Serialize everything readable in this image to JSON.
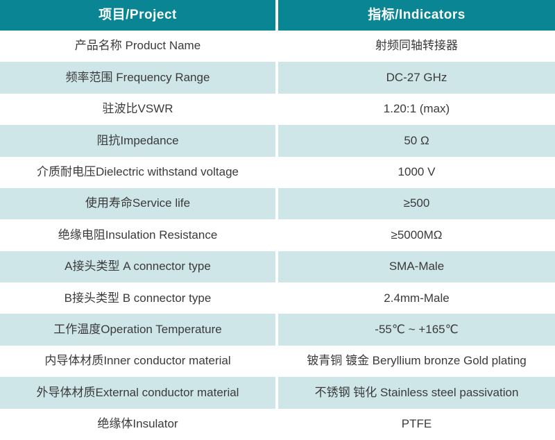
{
  "colors": {
    "header_bg": "#0A8593",
    "header_text": "#FFFFFF",
    "stripe_bg": "#CFE6E9",
    "row_bg": "#FFFFFF",
    "body_text": "#3A3A3A",
    "divider": "#FFFFFF"
  },
  "table": {
    "headers": [
      {
        "label": "项目/Project"
      },
      {
        "label": "指标/Indicators"
      }
    ],
    "rows": [
      {
        "project": "产品名称 Product Name",
        "indicator": "射频同轴转接器"
      },
      {
        "project": "频率范围 Frequency Range",
        "indicator": "DC-27 GHz"
      },
      {
        "project": "驻波比VSWR",
        "indicator": "1.20:1 (max)"
      },
      {
        "project": "阻抗Impedance",
        "indicator": "50 Ω"
      },
      {
        "project": "介质耐电压Dielectric withstand voltage",
        "indicator": "1000 V"
      },
      {
        "project": "使用寿命Service life",
        "indicator": "≥500"
      },
      {
        "project": "绝缘电阻Insulation Resistance",
        "indicator": "≥5000MΩ"
      },
      {
        "project": "A接头类型 A connector type",
        "indicator": "SMA-Male"
      },
      {
        "project": "B接头类型 B connector type",
        "indicator": "2.4mm-Male"
      },
      {
        "project": "工作温度Operation Temperature",
        "indicator": "-55℃ ~ +165℃"
      },
      {
        "project": "内导体材质Inner conductor material",
        "indicator": "铍青铜 镀金 Beryllium bronze Gold plating"
      },
      {
        "project": "外导体材质External conductor material",
        "indicator": "不锈钢 钝化 Stainless steel passivation"
      },
      {
        "project": "绝缘体Insulator",
        "indicator": "PTFE"
      }
    ]
  }
}
